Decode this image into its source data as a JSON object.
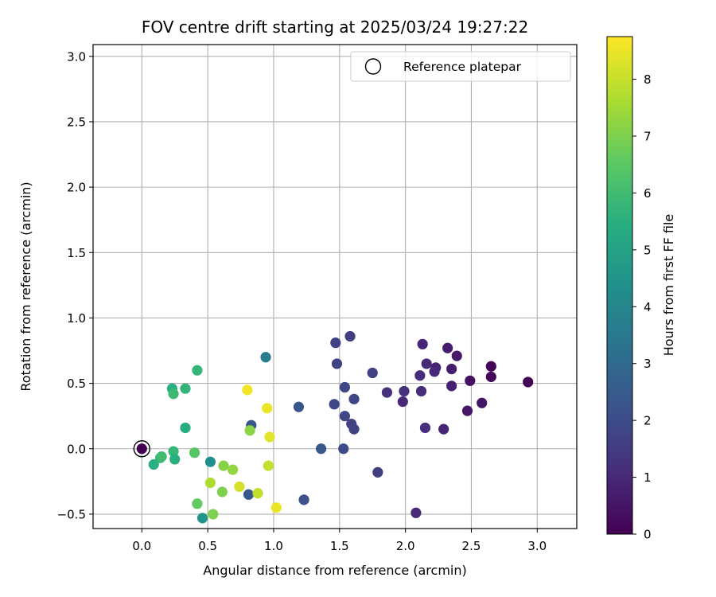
{
  "chart_data": {
    "type": "scatter",
    "title": "FOV centre drift starting at 2025/03/24 19:27:22",
    "xlabel": "Angular distance from reference (arcmin)",
    "ylabel": "Rotation from reference (arcmin)",
    "xlim": [
      -0.37,
      3.3
    ],
    "ylim": [
      -0.61,
      3.09
    ],
    "xticks": [
      0.0,
      0.5,
      1.0,
      1.5,
      2.0,
      2.5,
      3.0
    ],
    "xtick_labels": [
      "0.0",
      "0.5",
      "1.0",
      "1.5",
      "2.0",
      "2.5",
      "3.0"
    ],
    "yticks": [
      -0.5,
      0.0,
      0.5,
      1.0,
      1.5,
      2.0,
      2.5,
      3.0
    ],
    "ytick_labels": [
      "−0.5",
      "0.0",
      "0.5",
      "1.0",
      "1.5",
      "2.0",
      "2.5",
      "3.0"
    ],
    "grid": true,
    "colormap": "viridis",
    "colorbar": {
      "label": "Hours from first FF file",
      "min": 0,
      "max": 8.75,
      "ticks": [
        0,
        1,
        2,
        3,
        4,
        5,
        6,
        7,
        8
      ],
      "tick_labels": [
        "0",
        "1",
        "2",
        "3",
        "4",
        "5",
        "6",
        "7",
        "8"
      ]
    },
    "legend": {
      "position": "top-right",
      "entries": [
        "Reference platepar"
      ]
    },
    "reference_point": {
      "x": 0.0,
      "y": 0.0,
      "label": "Reference platepar"
    },
    "points": [
      {
        "x": 0.0,
        "y": 0.0,
        "h": 0.0
      },
      {
        "x": 2.93,
        "y": 0.51,
        "h": 0.1
      },
      {
        "x": 2.65,
        "y": 0.63,
        "h": 0.1
      },
      {
        "x": 2.65,
        "y": 0.55,
        "h": 0.2
      },
      {
        "x": 2.49,
        "y": 0.52,
        "h": 0.4
      },
      {
        "x": 2.58,
        "y": 0.35,
        "h": 0.5
      },
      {
        "x": 2.47,
        "y": 0.29,
        "h": 0.5
      },
      {
        "x": 2.39,
        "y": 0.71,
        "h": 0.6
      },
      {
        "x": 2.32,
        "y": 0.77,
        "h": 0.7
      },
      {
        "x": 2.35,
        "y": 0.61,
        "h": 0.7
      },
      {
        "x": 2.35,
        "y": 0.48,
        "h": 0.8
      },
      {
        "x": 2.13,
        "y": 0.8,
        "h": 0.9
      },
      {
        "x": 2.23,
        "y": 0.62,
        "h": 0.9
      },
      {
        "x": 2.22,
        "y": 0.59,
        "h": 1.0
      },
      {
        "x": 2.16,
        "y": 0.65,
        "h": 1.0
      },
      {
        "x": 2.11,
        "y": 0.56,
        "h": 1.1
      },
      {
        "x": 2.12,
        "y": 0.44,
        "h": 1.1
      },
      {
        "x": 2.15,
        "y": 0.16,
        "h": 1.1
      },
      {
        "x": 2.29,
        "y": 0.15,
        "h": 0.9
      },
      {
        "x": 1.99,
        "y": 0.44,
        "h": 1.2
      },
      {
        "x": 1.86,
        "y": 0.43,
        "h": 1.2
      },
      {
        "x": 1.98,
        "y": 0.36,
        "h": 1.0
      },
      {
        "x": 2.08,
        "y": -0.49,
        "h": 1.0
      },
      {
        "x": 1.58,
        "y": 0.86,
        "h": 1.6
      },
      {
        "x": 1.47,
        "y": 0.81,
        "h": 1.7
      },
      {
        "x": 1.48,
        "y": 0.65,
        "h": 1.7
      },
      {
        "x": 1.75,
        "y": 0.58,
        "h": 1.7
      },
      {
        "x": 1.54,
        "y": 0.47,
        "h": 1.9
      },
      {
        "x": 1.61,
        "y": 0.38,
        "h": 1.8
      },
      {
        "x": 1.46,
        "y": 0.34,
        "h": 1.8
      },
      {
        "x": 1.54,
        "y": 0.25,
        "h": 1.8
      },
      {
        "x": 1.59,
        "y": 0.19,
        "h": 1.7
      },
      {
        "x": 1.61,
        "y": 0.15,
        "h": 1.7
      },
      {
        "x": 1.53,
        "y": 0.0,
        "h": 2.0
      },
      {
        "x": 1.79,
        "y": -0.18,
        "h": 1.6
      },
      {
        "x": 1.36,
        "y": 0.0,
        "h": 2.4
      },
      {
        "x": 1.19,
        "y": 0.32,
        "h": 2.3
      },
      {
        "x": 1.23,
        "y": -0.39,
        "h": 2.2
      },
      {
        "x": 0.94,
        "y": 0.7,
        "h": 3.6
      },
      {
        "x": 0.83,
        "y": 0.18,
        "h": 2.4
      },
      {
        "x": 0.81,
        "y": -0.35,
        "h": 2.4
      },
      {
        "x": 0.52,
        "y": -0.1,
        "h": 4.3
      },
      {
        "x": 0.46,
        "y": -0.53,
        "h": 4.5
      },
      {
        "x": 0.42,
        "y": 0.6,
        "h": 5.8
      },
      {
        "x": 0.33,
        "y": 0.46,
        "h": 5.7
      },
      {
        "x": 0.23,
        "y": 0.46,
        "h": 5.5
      },
      {
        "x": 0.24,
        "y": 0.42,
        "h": 5.9
      },
      {
        "x": 0.33,
        "y": 0.16,
        "h": 5.4
      },
      {
        "x": 0.09,
        "y": -0.12,
        "h": 5.5
      },
      {
        "x": 0.14,
        "y": -0.07,
        "h": 5.7
      },
      {
        "x": 0.15,
        "y": -0.06,
        "h": 6.0
      },
      {
        "x": 0.24,
        "y": -0.02,
        "h": 5.8
      },
      {
        "x": 0.25,
        "y": -0.08,
        "h": 5.5
      },
      {
        "x": 0.4,
        "y": -0.03,
        "h": 6.4
      },
      {
        "x": 0.42,
        "y": -0.42,
        "h": 6.6
      },
      {
        "x": 0.82,
        "y": 0.14,
        "h": 7.2
      },
      {
        "x": 0.62,
        "y": -0.13,
        "h": 7.1
      },
      {
        "x": 0.69,
        "y": -0.16,
        "h": 7.3
      },
      {
        "x": 0.61,
        "y": -0.33,
        "h": 7.0
      },
      {
        "x": 0.54,
        "y": -0.5,
        "h": 7.0
      },
      {
        "x": 0.52,
        "y": -0.26,
        "h": 7.7
      },
      {
        "x": 0.74,
        "y": -0.29,
        "h": 8.2
      },
      {
        "x": 0.88,
        "y": -0.34,
        "h": 7.9
      },
      {
        "x": 0.96,
        "y": -0.13,
        "h": 8.0
      },
      {
        "x": 0.97,
        "y": 0.09,
        "h": 8.4
      },
      {
        "x": 0.95,
        "y": 0.31,
        "h": 8.5
      },
      {
        "x": 0.8,
        "y": 0.45,
        "h": 8.6
      },
      {
        "x": 1.02,
        "y": -0.45,
        "h": 8.5
      }
    ]
  }
}
